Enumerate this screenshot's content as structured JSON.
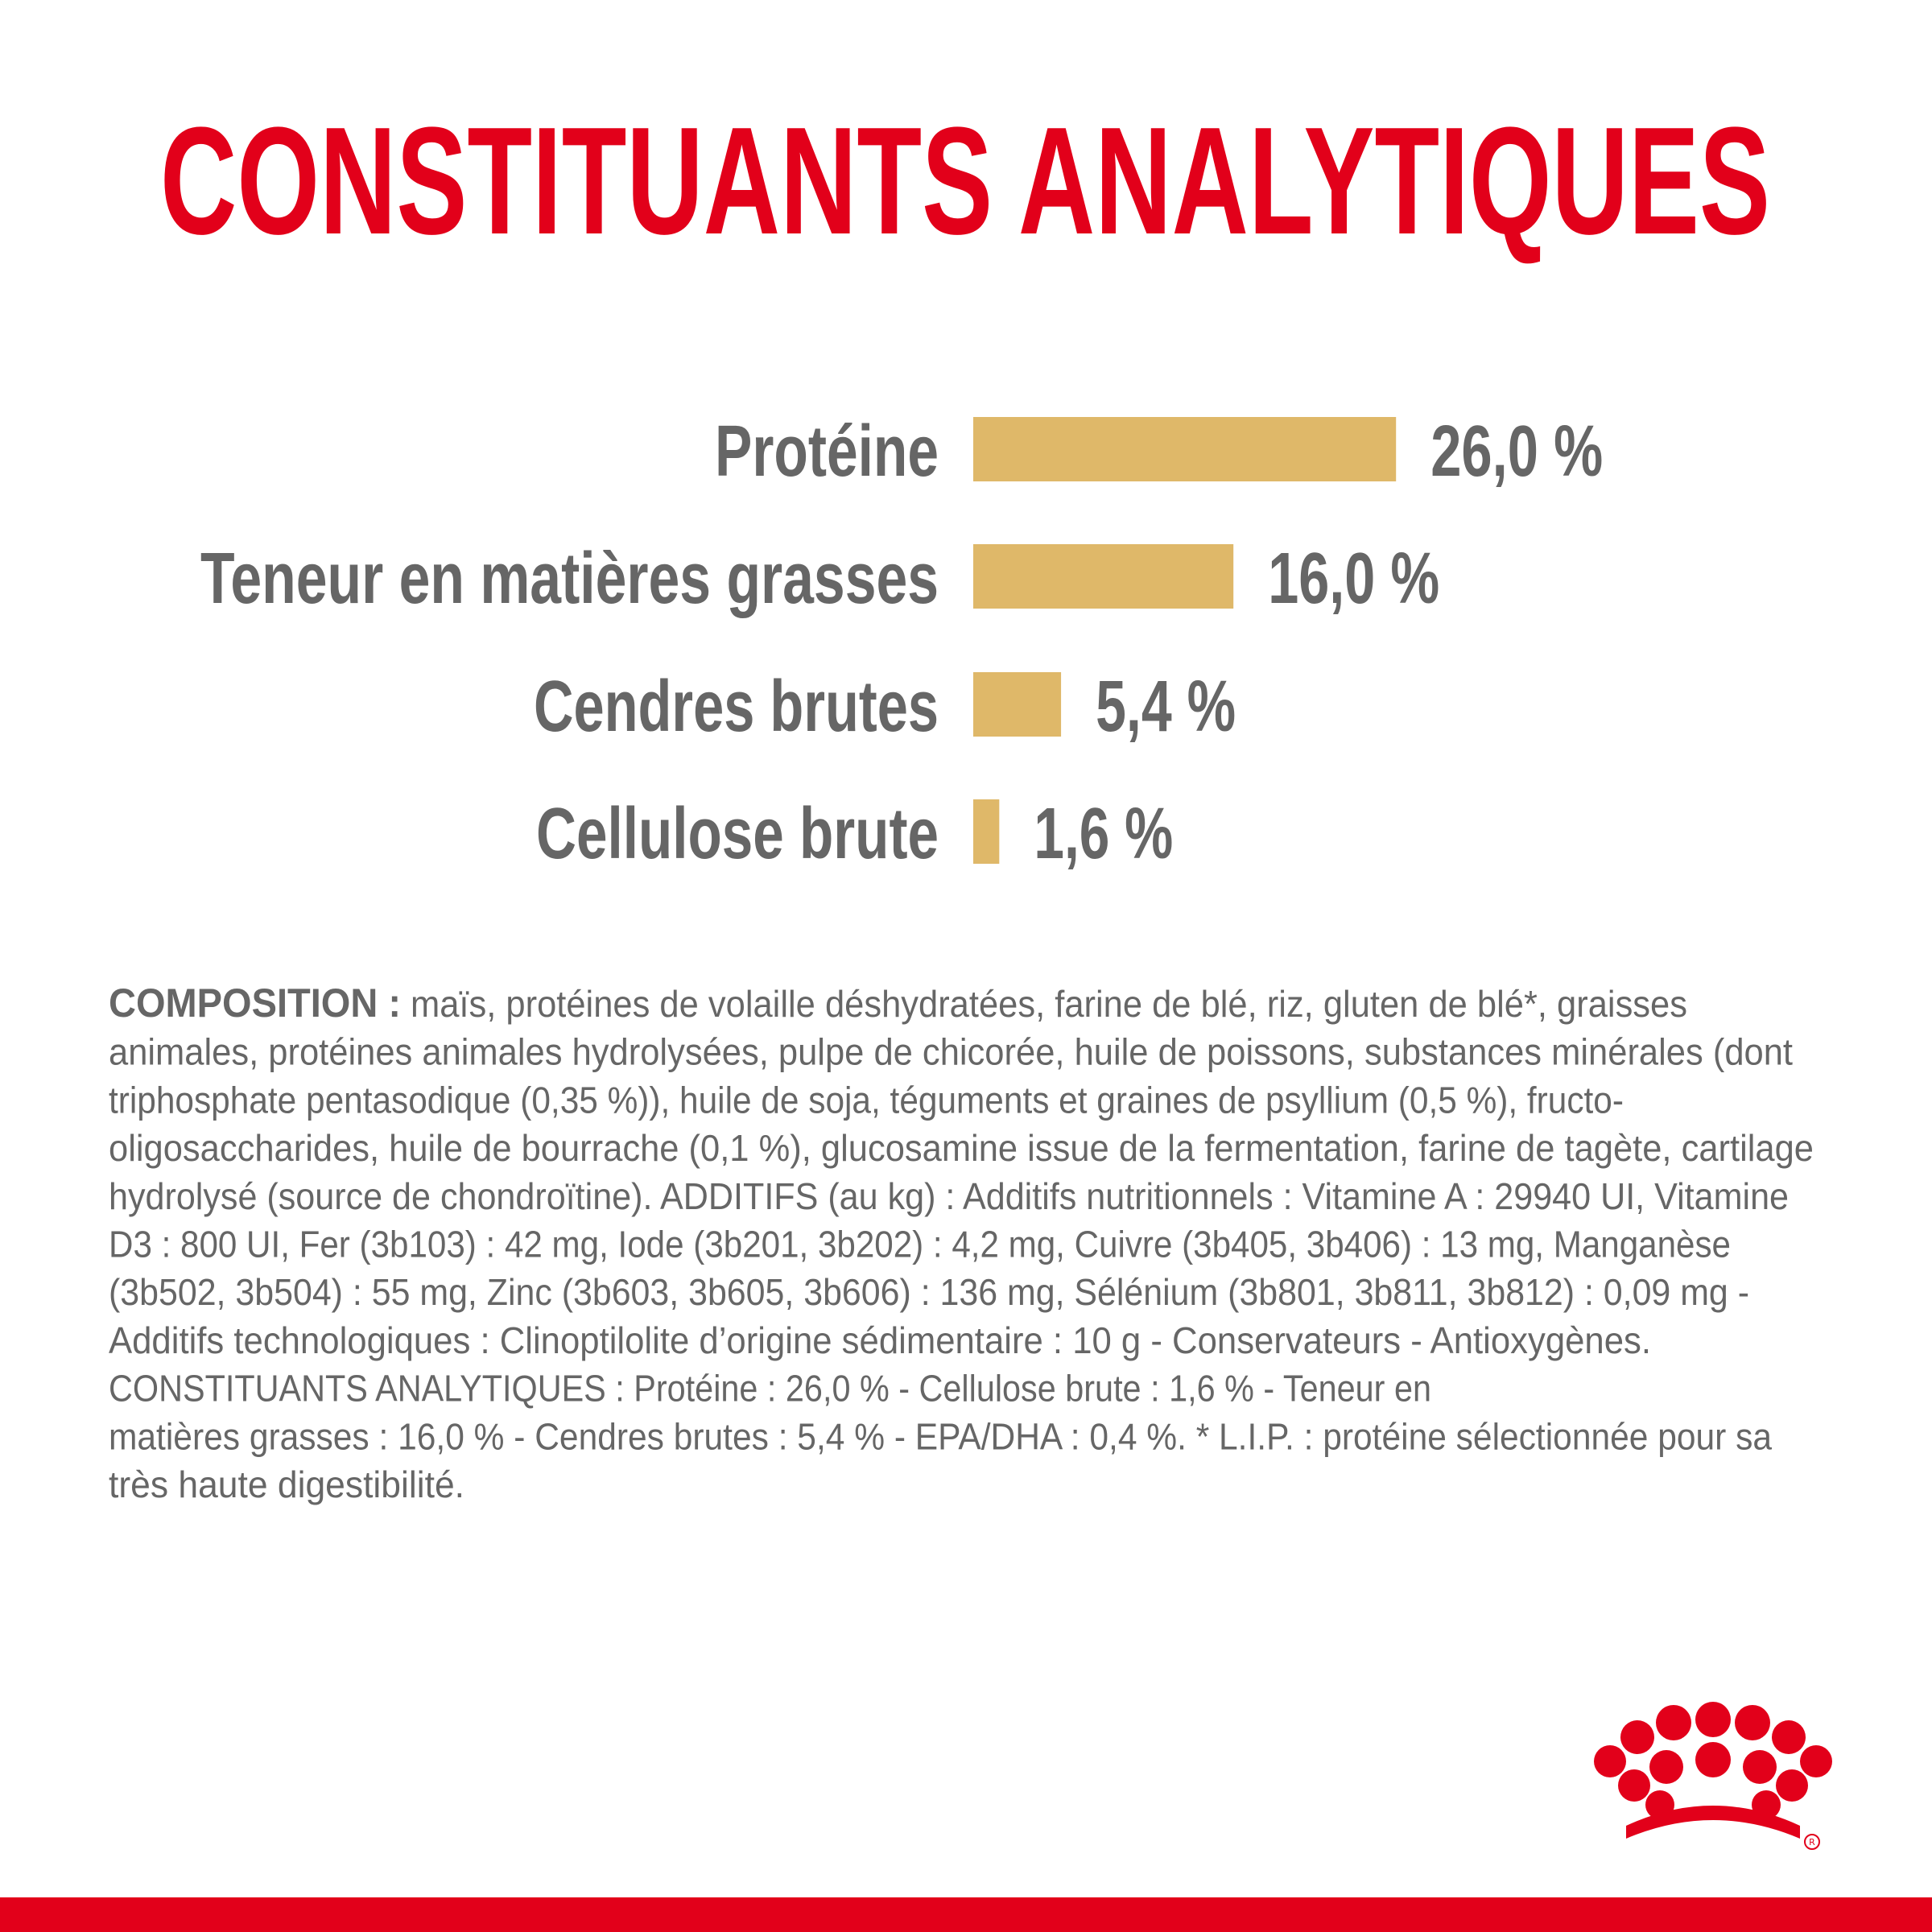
{
  "chart_data": {
    "type": "bar",
    "orientation": "horizontal",
    "title": "CONSTITUANTS ANALYTIQUES",
    "categories": [
      "Protéine",
      "Teneur en matières grasses",
      "Cendres brutes",
      "Cellulose brute"
    ],
    "values": [
      26.0,
      16.0,
      5.4,
      1.6
    ],
    "value_labels": [
      "26,0 %",
      "16,0 %",
      "5,4 %",
      "1,6 %"
    ],
    "color": "#dfb869"
  },
  "composition": {
    "label": "COMPOSITION :",
    "lines": [
      "maïs, protéines de volaille déshydratées, farine de blé, riz, gluten de blé*, graisses",
      "animales, protéines animales hydrolysées, pulpe de chicorée, huile de poissons, substances minérales (dont",
      "triphosphate pentasodique (0,35 %)), huile de soja, téguments et graines de psyllium (0,5 %), fructo-",
      "oligosaccharides, huile de bourrache (0,1 %), glucosamine issue de la fermentation, farine de tagète, cartilage",
      "hydrolysé (source de chondroïtine). ADDITIFS (au kg) : Additifs nutritionnels : Vitamine A : 29940 UI, Vitamine",
      "D3 : 800 UI, Fer (3b103) : 42 mg, Iode (3b201, 3b202) : 4,2 mg, Cuivre (3b405, 3b406) : 13 mg, Manganèse",
      "(3b502, 3b504) : 55 mg, Zinc (3b603, 3b605, 3b606) : 136 mg, Sélénium (3b801, 3b811, 3b812) : 0,09 mg -",
      "Additifs technologiques : Clinoptilolite d’origine sédimentaire : 10 g - Conservateurs - Antioxygènes.",
      "CONSTITUANTS ANALYTIQUES : Protéine : 26,0 % - Cellulose brute : 1,6 % - Teneur en",
      "matières grasses : 16,0 % - Cendres brutes : 5,4 % - EPA/DHA : 0,4 %. * L.I.P. : protéine sélectionnée pour sa",
      "très haute digestibilité."
    ]
  }
}
